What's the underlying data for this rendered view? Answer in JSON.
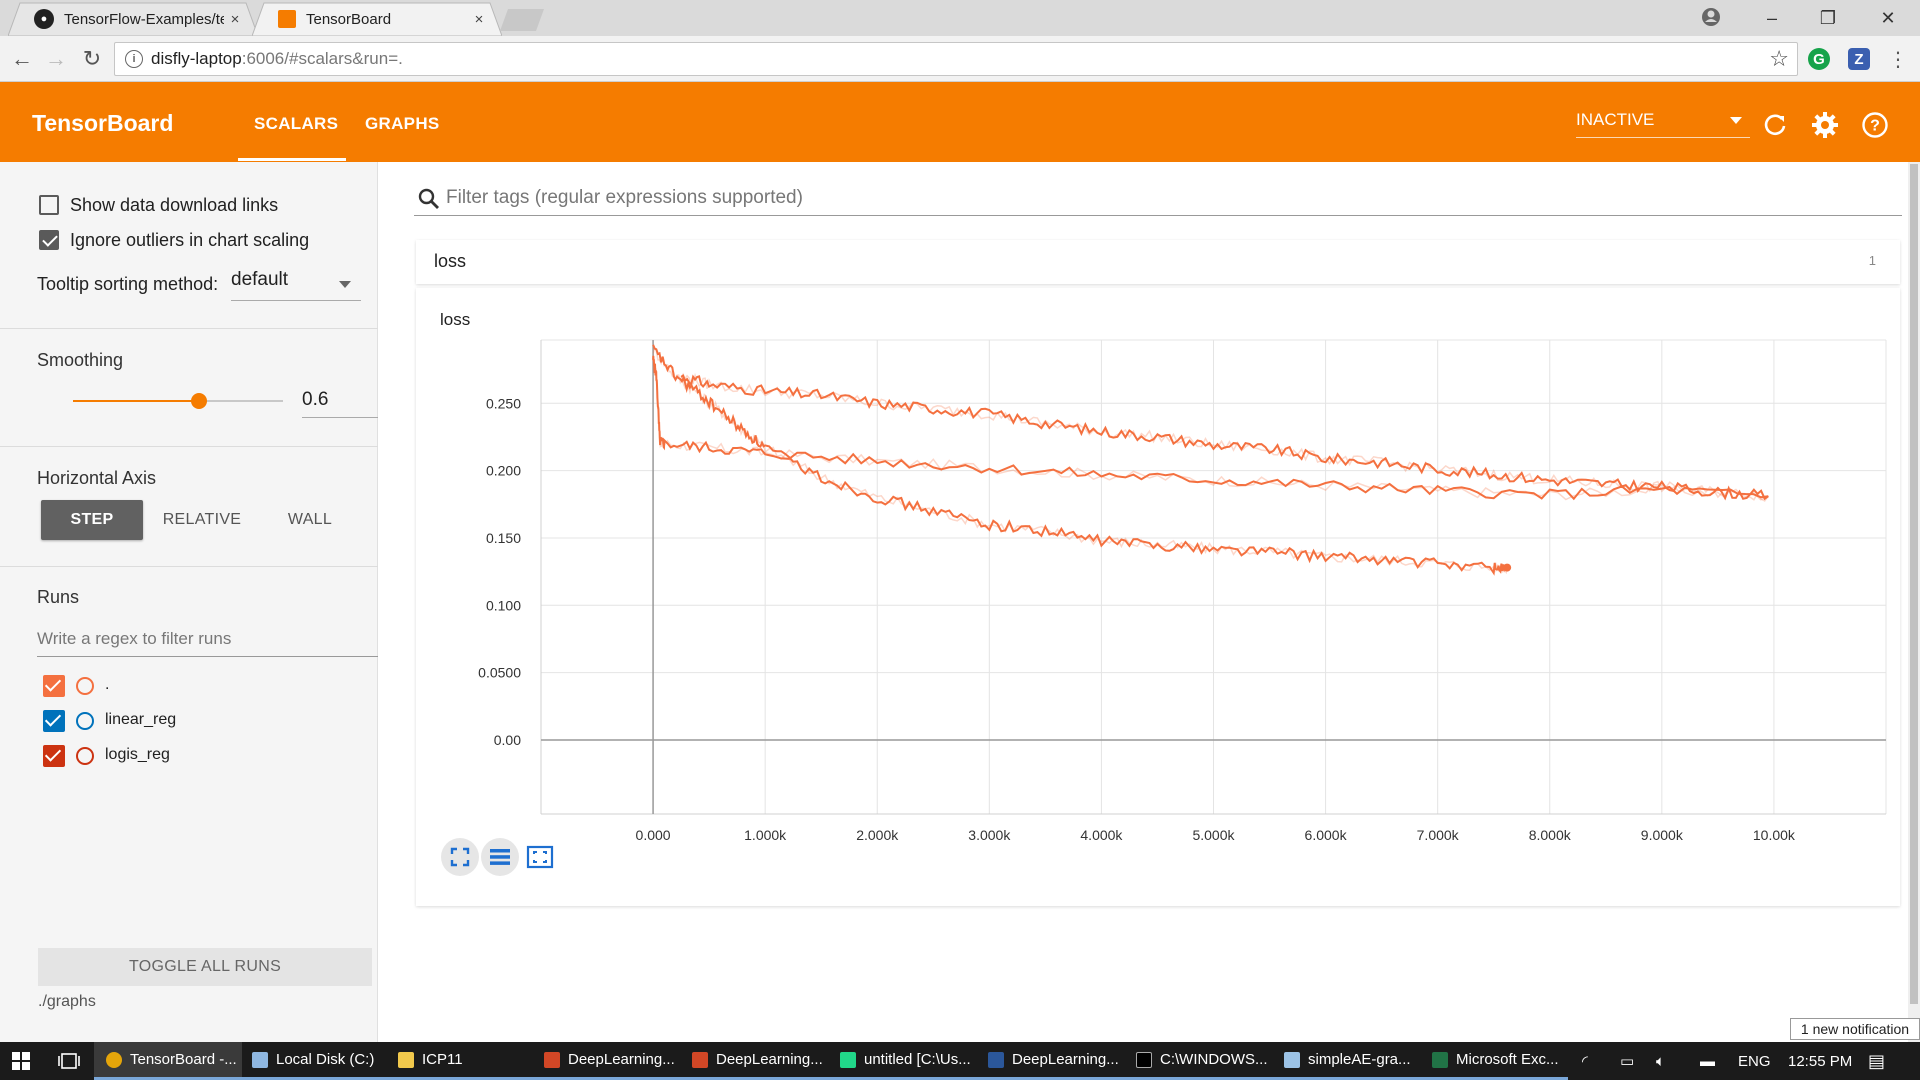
{
  "browser": {
    "tabs": [
      {
        "title": "TensorFlow-Examples/ter",
        "close": "×"
      },
      {
        "title": "TensorBoard",
        "close": "×"
      }
    ],
    "url_host": "disfly-laptop",
    "url_path": ":6006/#scalars&run=.",
    "extensions": [
      "G",
      "Z"
    ]
  },
  "toolbar": {
    "brand": "TensorBoard",
    "tabs": [
      "SCALARS",
      "GRAPHS"
    ],
    "active_tab": "SCALARS",
    "run_select": "INACTIVE"
  },
  "sidebar": {
    "show_download_links": {
      "label": "Show data download links",
      "checked": false
    },
    "ignore_outliers": {
      "label": "Ignore outliers in chart scaling",
      "checked": true
    },
    "tooltip_sorting": {
      "label": "Tooltip sorting method:",
      "value": "default"
    },
    "smoothing": {
      "title": "Smoothing",
      "value": "0.6",
      "fraction": 0.6
    },
    "horizontal_axis": {
      "title": "Horizontal Axis",
      "options": [
        "STEP",
        "RELATIVE",
        "WALL"
      ],
      "selected": "STEP"
    },
    "runs": {
      "title": "Runs",
      "filter_placeholder": "Write a regex to filter runs",
      "items": [
        {
          "label": ".",
          "color": "#f4703f",
          "checked": true
        },
        {
          "label": "linear_reg",
          "color": "#0072bb",
          "checked": true
        },
        {
          "label": "logis_reg",
          "color": "#cc3311",
          "checked": true
        }
      ]
    },
    "toggle_all": "TOGGLE ALL RUNS",
    "logdir": "./graphs"
  },
  "main": {
    "search_placeholder": "Filter tags (regular expressions supported)",
    "category": {
      "name": "loss",
      "count": "1"
    }
  },
  "chart_data": {
    "type": "line",
    "title": "loss",
    "xlabel": "",
    "ylabel": "",
    "x_ticks": [
      "0.000",
      "1.000k",
      "2.000k",
      "3.000k",
      "4.000k",
      "5.000k",
      "6.000k",
      "7.000k",
      "8.000k",
      "9.000k",
      "10.00k"
    ],
    "y_ticks": [
      "0.00",
      "0.0500",
      "0.100",
      "0.150",
      "0.200",
      "0.250"
    ],
    "xlim": [
      -1000,
      11000
    ],
    "ylim": [
      -0.055,
      0.297
    ],
    "series": [
      {
        "color": "#f4703f",
        "x": [
          0,
          30,
          60,
          100,
          500,
          1000,
          2000,
          3000,
          4000,
          5000,
          6000,
          7000,
          8000,
          9000,
          9950
        ],
        "values": [
          0.283,
          0.27,
          0.222,
          0.22,
          0.217,
          0.213,
          0.207,
          0.202,
          0.197,
          0.193,
          0.189,
          0.185,
          0.182,
          0.186,
          0.181
        ]
      },
      {
        "color": "#f4703f",
        "x": [
          0,
          200,
          400,
          600,
          800,
          1000,
          1500,
          2000,
          2500,
          3000,
          3500,
          4000,
          4500,
          5000,
          5500,
          6000,
          6500,
          7000,
          7500,
          7620
        ],
        "values": [
          0.29,
          0.27,
          0.258,
          0.244,
          0.23,
          0.217,
          0.195,
          0.18,
          0.17,
          0.16,
          0.155,
          0.148,
          0.145,
          0.142,
          0.14,
          0.136,
          0.134,
          0.131,
          0.128,
          0.128
        ]
      },
      {
        "color": "#f4703f",
        "x": [
          250,
          500,
          1000,
          1500,
          2000,
          2500,
          3000,
          3500,
          4000,
          4500,
          5000,
          5500,
          6000,
          6500,
          7000,
          7500,
          8000,
          8500,
          9000,
          9500,
          9950
        ],
        "values": [
          0.27,
          0.264,
          0.259,
          0.256,
          0.25,
          0.246,
          0.242,
          0.235,
          0.229,
          0.225,
          0.219,
          0.216,
          0.209,
          0.206,
          0.201,
          0.197,
          0.193,
          0.19,
          0.188,
          0.184,
          0.181
        ]
      }
    ],
    "legend": "none",
    "grid": true
  }
}
